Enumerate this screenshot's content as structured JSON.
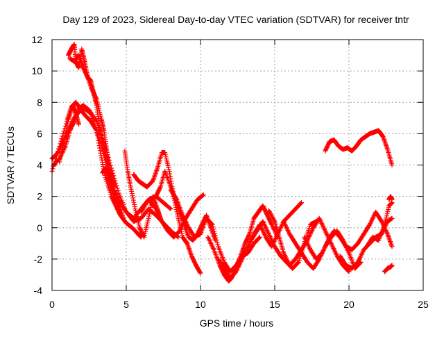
{
  "chart_data": {
    "type": "scatter",
    "title": "Day 129 of 2023, Sidereal Day-to-day VTEC variation (SDTVAR) for receiver tntr",
    "xlabel": "GPS time / hours",
    "ylabel": "SDTVAR / TECUs",
    "xlim": [
      0,
      25
    ],
    "ylim": [
      -4,
      12
    ],
    "xticks": [
      0,
      5,
      10,
      15,
      20,
      25
    ],
    "yticks": [
      -4,
      -2,
      0,
      2,
      4,
      6,
      8,
      10,
      12
    ],
    "grid": true,
    "marker": "+",
    "color": "#ff0000",
    "series": [
      {
        "x": [
          0.0,
          0.5,
          1.0,
          1.3,
          1.6,
          1.9,
          2.2,
          2.6,
          3.0,
          3.3,
          3.6,
          4.0,
          4.3,
          4.6,
          5.0,
          5.4,
          5.8,
          6.0
        ],
        "y": [
          3.6,
          5.2,
          6.8,
          7.7,
          8.0,
          7.6,
          7.2,
          6.8,
          6.2,
          4.6,
          3.2,
          2.0,
          1.4,
          0.8,
          0.3,
          0.0,
          -0.4,
          -0.6
        ]
      },
      {
        "x": [
          0.0,
          0.4,
          0.8,
          1.2,
          1.5,
          1.8,
          2.2,
          2.6,
          3.0,
          3.4,
          3.8,
          4.2,
          4.6,
          5.0,
          5.5,
          6.0,
          6.5,
          7.0,
          7.5,
          8.0,
          8.5
        ],
        "y": [
          4.4,
          4.8,
          5.6,
          6.4,
          7.0,
          7.4,
          7.6,
          7.3,
          6.2,
          5.0,
          3.6,
          2.4,
          1.6,
          1.0,
          0.4,
          0.6,
          1.2,
          0.8,
          0.3,
          -0.2,
          -0.6
        ]
      },
      {
        "x": [
          0.1,
          0.5,
          0.9,
          1.2,
          1.5,
          1.8,
          2.1,
          2.5,
          3.0,
          3.5,
          4.0,
          4.5,
          5.0,
          5.5,
          6.0,
          6.5,
          7.0,
          7.5,
          8.0
        ],
        "y": [
          4.0,
          4.4,
          5.2,
          6.2,
          6.8,
          7.6,
          7.8,
          7.5,
          6.8,
          5.5,
          3.8,
          2.2,
          1.0,
          0.6,
          1.2,
          1.8,
          2.0,
          1.6,
          1.2
        ]
      },
      {
        "x": [
          0.5,
          0.8,
          1.1,
          1.4,
          1.6,
          1.8
        ],
        "y": [
          4.2,
          5.5,
          6.9,
          7.8,
          7.3,
          6.6
        ]
      },
      {
        "x": [
          1.1,
          1.3,
          1.5,
          1.6,
          1.8,
          2.0,
          2.2,
          2.4,
          2.6,
          2.8,
          3.0,
          3.2,
          3.4,
          3.6,
          3.8,
          4.0,
          4.2
        ],
        "y": [
          11.0,
          11.4,
          11.7,
          10.6,
          10.2,
          11.4,
          10.6,
          9.6,
          9.4,
          8.6,
          7.8,
          6.4,
          5.5,
          4.6,
          3.8,
          3.2,
          2.6
        ]
      },
      {
        "x": [
          1.2,
          1.5,
          1.8,
          2.1,
          2.4,
          2.7,
          3.0,
          3.3,
          3.5,
          3.7,
          3.9
        ],
        "y": [
          10.8,
          10.6,
          11.0,
          10.2,
          9.6,
          8.8,
          8.2,
          7.0,
          6.2,
          4.8,
          3.4
        ]
      },
      {
        "x": [
          3.4,
          3.6,
          3.8,
          4.0,
          4.2,
          4.5,
          4.8
        ],
        "y": [
          3.5,
          3.8,
          3.2,
          2.6,
          2.0,
          1.4,
          0.6
        ]
      },
      {
        "x": [
          4.9,
          5.1,
          5.3,
          5.6,
          5.9,
          6.2,
          6.5,
          6.8,
          7.1,
          7.3
        ],
        "y": [
          4.9,
          3.6,
          2.6,
          1.2,
          0.0,
          -0.6,
          0.6,
          2.0,
          1.2,
          0.6
        ]
      },
      {
        "x": [
          5.5,
          5.8,
          6.1,
          6.4,
          6.8,
          7.1,
          7.4,
          7.6,
          7.9,
          8.2,
          8.5,
          8.8,
          9.1,
          9.4,
          9.7,
          10.0
        ],
        "y": [
          3.4,
          3.0,
          2.8,
          2.6,
          3.0,
          3.8,
          4.8,
          4.8,
          3.6,
          2.0,
          0.6,
          -0.6,
          -1.0,
          -1.8,
          -2.4,
          -2.9
        ]
      },
      {
        "x": [
          6.0,
          6.5,
          7.0,
          7.4,
          7.8,
          8.2,
          8.6,
          9.0,
          9.4,
          9.8,
          10.2
        ],
        "y": [
          1.0,
          1.8,
          1.2,
          0.4,
          -0.2,
          -0.6,
          -0.2,
          0.6,
          1.2,
          1.8,
          2.1
        ]
      },
      {
        "x": [
          7.0,
          7.3,
          7.6,
          8.0,
          8.3,
          8.6,
          8.9,
          9.2,
          9.5,
          9.8,
          10.1,
          10.4,
          10.7,
          11.0
        ],
        "y": [
          2.0,
          2.6,
          3.6,
          2.6,
          1.8,
          1.0,
          0.2,
          -0.6,
          -0.8,
          -0.4,
          0.2,
          0.8,
          0.0,
          -0.8
        ]
      },
      {
        "x": [
          8.0,
          8.4,
          8.8,
          9.2,
          9.6,
          10.0,
          10.4,
          10.8,
          11.2,
          11.6,
          12.0,
          12.4,
          12.8,
          13.2,
          13.6,
          14.0
        ],
        "y": [
          2.4,
          1.8,
          0.8,
          0.0,
          -0.6,
          -0.4,
          0.6,
          0.2,
          -1.2,
          -2.2,
          -2.8,
          -2.4,
          -1.8,
          -1.6,
          -1.0,
          -0.6
        ]
      },
      {
        "x": [
          10.5,
          10.9,
          11.3,
          11.6,
          11.9,
          12.1,
          12.4,
          12.7,
          13.0,
          13.3,
          13.6,
          13.9,
          14.2,
          14.5,
          14.8,
          15.2
        ],
        "y": [
          -0.6,
          -1.4,
          -2.4,
          -3.0,
          -3.4,
          -3.2,
          -2.6,
          -1.8,
          -1.0,
          -0.4,
          0.6,
          1.0,
          1.4,
          0.8,
          0.2,
          -0.6
        ]
      },
      {
        "x": [
          11.2,
          11.6,
          12.0,
          12.4,
          12.8,
          13.2,
          13.6,
          14.0,
          14.4,
          14.8,
          15.2,
          15.6,
          16.0,
          16.4,
          16.8
        ],
        "y": [
          -2.0,
          -2.6,
          -3.2,
          -2.8,
          -2.0,
          -1.2,
          -0.4,
          0.2,
          -0.6,
          -1.2,
          -0.4,
          0.4,
          0.8,
          1.2,
          1.6
        ]
      },
      {
        "x": [
          12.6,
          13.0,
          13.4,
          13.8,
          14.2,
          14.6,
          15.0,
          15.4,
          15.8,
          16.2,
          16.6,
          17.0,
          17.4,
          17.8
        ],
        "y": [
          -2.2,
          -1.6,
          -0.8,
          -0.2,
          0.4,
          -0.4,
          -1.2,
          -1.8,
          -2.2,
          -2.6,
          -2.2,
          -1.0,
          0.2,
          0.4
        ]
      },
      {
        "x": [
          14.6,
          15.0,
          15.3,
          15.6,
          16.0,
          16.4,
          16.8,
          17.2,
          17.6,
          18.0,
          18.4,
          18.8,
          19.2,
          19.6,
          20.0
        ],
        "y": [
          1.1,
          0.4,
          -0.6,
          -1.6,
          -2.4,
          -2.0,
          -1.4,
          -0.8,
          0.0,
          0.6,
          -0.2,
          -1.0,
          -1.8,
          -2.4,
          -2.8
        ]
      },
      {
        "x": [
          15.6,
          16.0,
          16.4,
          16.8,
          17.2,
          17.6,
          18.0,
          18.4,
          18.8,
          19.2,
          19.6,
          20.0,
          20.4,
          20.8
        ],
        "y": [
          0.4,
          -0.4,
          -1.0,
          -1.6,
          -2.2,
          -2.6,
          -2.0,
          -1.2,
          -0.6,
          -0.2,
          -0.8,
          -1.6,
          -2.6,
          -2.2
        ]
      },
      {
        "x": [
          17.0,
          17.4,
          17.8,
          18.2,
          18.6,
          19.0,
          19.4,
          19.8,
          20.2,
          20.6,
          21.0,
          21.4,
          21.8,
          22.2,
          22.6,
          22.9
        ],
        "y": [
          -0.6,
          -1.4,
          -2.0,
          -1.6,
          -0.8,
          -0.2,
          -0.6,
          -1.2,
          -1.4,
          -1.0,
          -0.4,
          0.2,
          1.0,
          0.4,
          -0.4,
          -1.2
        ]
      },
      {
        "x": [
          18.4,
          18.7,
          19.0,
          19.3,
          19.6,
          19.9,
          20.2,
          20.5,
          20.8,
          21.1,
          21.4,
          21.7,
          22.0,
          22.3,
          22.6,
          22.9
        ],
        "y": [
          4.9,
          5.5,
          5.6,
          5.2,
          5.0,
          5.1,
          4.9,
          5.2,
          5.6,
          5.8,
          6.0,
          6.1,
          6.2,
          5.8,
          5.0,
          4.0
        ]
      },
      {
        "x": [
          19.4,
          19.8,
          20.2,
          20.6,
          21.0,
          21.4,
          21.8,
          22.2,
          22.6,
          22.9
        ],
        "y": [
          -1.8,
          -2.4,
          -2.6,
          -2.2,
          -1.4,
          -1.0,
          -0.6,
          -0.4,
          0.4,
          0.6
        ]
      },
      {
        "x": [
          21.2,
          21.6,
          22.0,
          22.4,
          22.7,
          22.9
        ],
        "y": [
          -1.2,
          -0.6,
          -0.8,
          0.2,
          1.4,
          1.6
        ]
      },
      {
        "x": [
          22.4,
          22.6,
          22.8,
          22.9
        ],
        "y": [
          -2.8,
          -2.6,
          -2.5,
          -2.4
        ]
      },
      {
        "x": [
          22.7,
          22.8,
          22.9
        ],
        "y": [
          1.8,
          2.0,
          1.8
        ]
      }
    ]
  }
}
